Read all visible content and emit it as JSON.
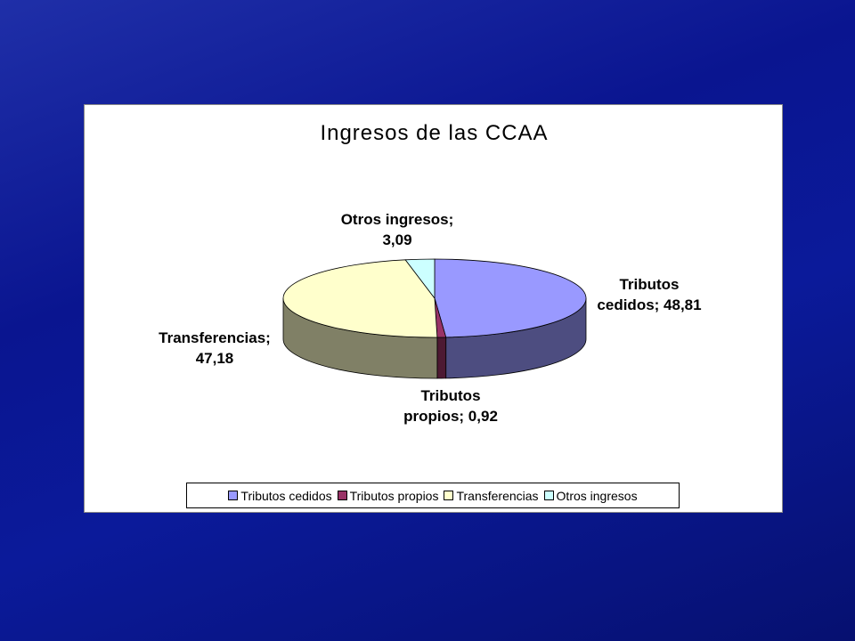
{
  "chart_data": {
    "type": "pie3d",
    "title": "Ingresos de las CCAA",
    "categories": [
      "Tributos cedidos",
      "Tributos propios",
      "Transferencias",
      "Otros ingresos"
    ],
    "values": [
      48.81,
      0.92,
      47.18,
      3.09
    ],
    "value_labels": [
      "Tributos\ncedidos; 48,81",
      "Tributos\npropios; 0,92",
      "Transferencias;\n47,18",
      "Otros ingresos;\n3,09"
    ],
    "colors": [
      "#9999ff",
      "#993366",
      "#ffffcc",
      "#ccffff"
    ],
    "legend": "bottom"
  }
}
